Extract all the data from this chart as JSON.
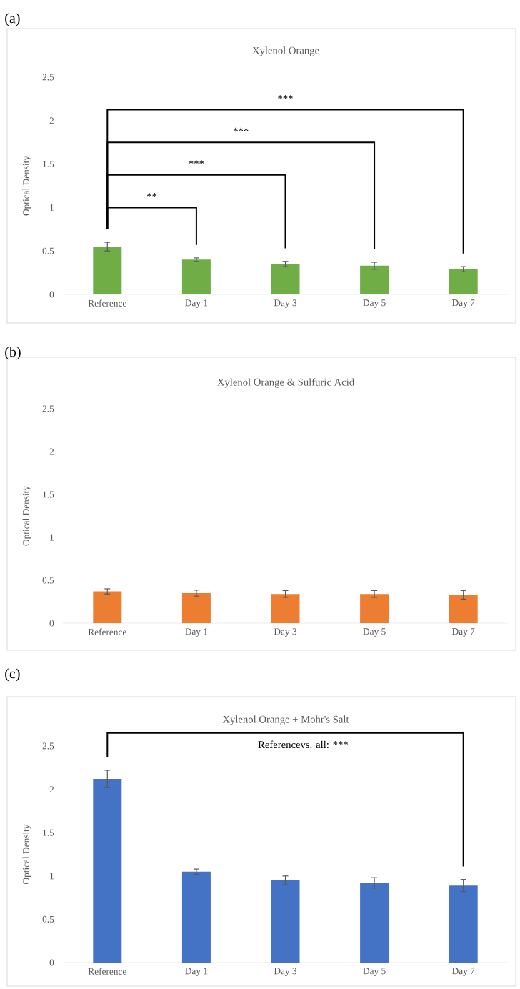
{
  "chart_data": [
    {
      "type": "bar",
      "title": "Xylenol Orange",
      "ylabel": "Optical Density",
      "categories": [
        "Reference",
        "Day 1",
        "Day 3",
        "Day 5",
        "Day 7"
      ],
      "values": [
        0.55,
        0.4,
        0.35,
        0.33,
        0.29
      ],
      "errors": [
        0.05,
        0.02,
        0.03,
        0.04,
        0.03
      ],
      "color": "#70ad47",
      "ylim": [
        0,
        2.5
      ],
      "yticks": [
        0,
        0.5,
        1,
        1.5,
        2,
        2.5
      ],
      "annotations": [
        "(a)",
        "**",
        "***",
        "***",
        "***"
      ]
    },
    {
      "type": "bar",
      "title": "Xylenol Orange & Sulfuric Acid",
      "ylabel": "Optical Density",
      "categories": [
        "Reference",
        "Day 1",
        "Day 3",
        "Day 5",
        "Day 7"
      ],
      "values": [
        0.37,
        0.35,
        0.34,
        0.34,
        0.33
      ],
      "errors": [
        0.03,
        0.035,
        0.04,
        0.04,
        0.05
      ],
      "color": "#ed7d31",
      "ylim": [
        0,
        2.5
      ],
      "yticks": [
        0,
        0.5,
        1,
        1.5,
        2,
        2.5
      ],
      "annotations": [
        "(b)"
      ]
    },
    {
      "type": "bar",
      "title": "Xylenol Orange + Mohr's Salt",
      "ylabel": "Optical Density",
      "categories": [
        "Reference",
        "Day 1",
        "Day 3",
        "Day 5",
        "Day 7"
      ],
      "values": [
        2.12,
        1.05,
        0.95,
        0.92,
        0.89
      ],
      "errors": [
        0.1,
        0.03,
        0.05,
        0.06,
        0.07
      ],
      "color": "#4472c4",
      "ylim": [
        0,
        2.5
      ],
      "yticks": [
        0,
        0.5,
        1,
        1.5,
        2,
        2.5
      ],
      "annotations": [
        "(c)",
        "Referencevs. all: ***"
      ]
    }
  ]
}
